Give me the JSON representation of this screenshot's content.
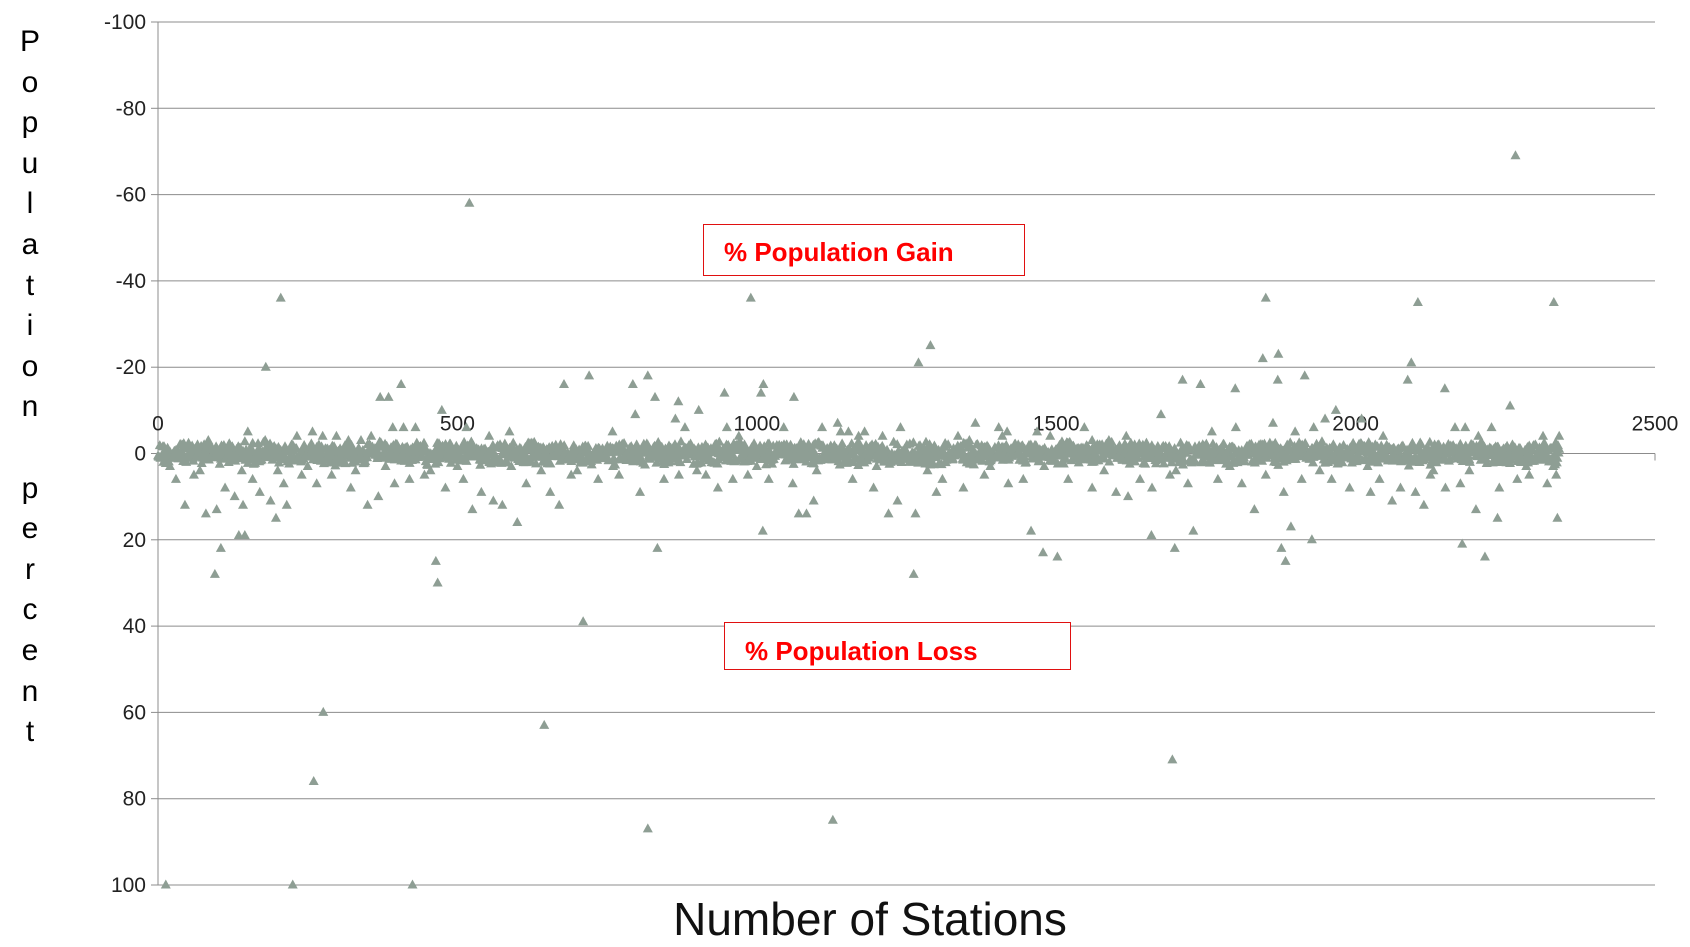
{
  "chart_data": {
    "type": "scatter",
    "title": "",
    "xlabel": "Number of Stations",
    "ylabel": "Population percent",
    "ylabel_chars": [
      "P",
      "o",
      "p",
      "u",
      "l",
      "a",
      "t",
      "i",
      "o",
      "n",
      "",
      "p",
      "e",
      "r",
      "c",
      "e",
      "n",
      "t"
    ],
    "xlim": [
      0,
      2500
    ],
    "ylim": [
      -100,
      100
    ],
    "y_reversed": true,
    "x_ticks": [
      "0",
      "500",
      "1000",
      "1500",
      "2000",
      "2500"
    ],
    "y_ticks": [
      "-100",
      "-80",
      "-60",
      "-40",
      "-20",
      "0",
      "20",
      "40",
      "60",
      "80",
      "100"
    ],
    "grid": "horizontal",
    "marker": "triangle",
    "marker_color": "#8e9e94",
    "annotations": {
      "gain": "% Population Gain",
      "loss": "% Population Loss"
    },
    "baseline_points": {
      "count": 2340,
      "x_range": [
        0,
        2340
      ],
      "y_spread": [
        -3,
        3
      ]
    },
    "series": [
      {
        "name": "",
        "points": [
          [
            13,
            100
          ],
          [
            225,
            100
          ],
          [
            425,
            100
          ],
          [
            818,
            87
          ],
          [
            1127,
            85
          ],
          [
            260,
            76
          ],
          [
            1694,
            71
          ],
          [
            2267,
            -69
          ],
          [
            276,
            60
          ],
          [
            645,
            63
          ],
          [
            520,
            -58
          ],
          [
            710,
            39
          ],
          [
            205,
            -36
          ],
          [
            990,
            -36
          ],
          [
            1850,
            -36
          ],
          [
            2104,
            -35
          ],
          [
            2331,
            -35
          ],
          [
            1290,
            -25
          ],
          [
            1262,
            28
          ],
          [
            467,
            30
          ],
          [
            1270,
            -21
          ],
          [
            1845,
            -22
          ],
          [
            1871,
            -23
          ],
          [
            2093,
            -21
          ],
          [
            95,
            28
          ],
          [
            180,
            -20
          ],
          [
            464,
            25
          ],
          [
            1502,
            24
          ],
          [
            1883,
            25
          ],
          [
            2216,
            24
          ],
          [
            1478,
            23
          ],
          [
            1698,
            22
          ],
          [
            1876,
            22
          ],
          [
            2178,
            21
          ],
          [
            1927,
            20
          ],
          [
            105,
            22
          ],
          [
            834,
            22
          ],
          [
            135,
            19
          ],
          [
            145,
            19
          ],
          [
            1729,
            18
          ],
          [
            1892,
            17
          ],
          [
            1458,
            18
          ],
          [
            1659,
            19
          ],
          [
            2337,
            15
          ],
          [
            197,
            15
          ],
          [
            215,
            12
          ],
          [
            670,
            12
          ],
          [
            1010,
            18
          ],
          [
            1220,
            14
          ],
          [
            1831,
            13
          ],
          [
            2114,
            12
          ],
          [
            2201,
            13
          ],
          [
            1070,
            14
          ],
          [
            1083,
            14
          ],
          [
            2061,
            11
          ],
          [
            2237,
            15
          ],
          [
            1711,
            -17
          ],
          [
            1741,
            -16
          ],
          [
            1870,
            -17
          ],
          [
            1915,
            -18
          ],
          [
            1799,
            -15
          ],
          [
            2087,
            -17
          ],
          [
            2149,
            -15
          ],
          [
            720,
            -18
          ],
          [
            793,
            -16
          ],
          [
            818,
            -18
          ],
          [
            1011,
            -16
          ],
          [
            1062,
            -13
          ],
          [
            1007,
            -14
          ],
          [
            946,
            -14
          ],
          [
            406,
            -16
          ],
          [
            385,
            -13
          ],
          [
            678,
            -16
          ],
          [
            2258,
            -11
          ],
          [
            2166,
            -6
          ],
          [
            2183,
            -6
          ],
          [
            1899,
            -5
          ],
          [
            1760,
            -5
          ],
          [
            1800,
            -6
          ],
          [
            1862,
            -7
          ],
          [
            1468,
            -5
          ],
          [
            1490,
            -4
          ],
          [
            1365,
            -7
          ],
          [
            1336,
            -4
          ],
          [
            1404,
            -6
          ],
          [
            1135,
            -7
          ],
          [
            1153,
            -5
          ],
          [
            1109,
            -6
          ],
          [
            1045,
            -6
          ],
          [
            903,
            -10
          ],
          [
            864,
            -8
          ],
          [
            830,
            -13
          ],
          [
            869,
            -12
          ],
          [
            880,
            -6
          ],
          [
            797,
            -9
          ],
          [
            759,
            -5
          ],
          [
            587,
            -5
          ],
          [
            553,
            -4
          ],
          [
            515,
            -6
          ],
          [
            474,
            -10
          ],
          [
            430,
            -6
          ],
          [
            410,
            -6
          ],
          [
            392,
            -6
          ],
          [
            371,
            -13
          ],
          [
            356,
            -4
          ],
          [
            339,
            -3
          ],
          [
            318,
            -3
          ],
          [
            298,
            -4
          ],
          [
            275,
            -4
          ],
          [
            258,
            -5
          ],
          [
            232,
            -4
          ],
          [
            179,
            -3
          ],
          [
            150,
            -5
          ],
          [
            119,
            -2
          ],
          [
            84,
            -3
          ],
          [
            66,
            -2
          ],
          [
            40,
            -2
          ],
          [
            2227,
            -6
          ],
          [
            2313,
            -4
          ],
          [
            2300,
            -2
          ],
          [
            2340,
            -4
          ],
          [
            2205,
            -4
          ],
          [
            2046,
            -4
          ],
          [
            2010,
            -8
          ],
          [
            1967,
            -10
          ],
          [
            1949,
            -8
          ],
          [
            1930,
            -6
          ],
          [
            1617,
            -4
          ],
          [
            1588,
            -3
          ],
          [
            1547,
            -6
          ],
          [
            1675,
            -9
          ],
          [
            1631,
            -2
          ],
          [
            1560,
            -3
          ],
          [
            1180,
            -5
          ],
          [
            1240,
            -6
          ],
          [
            1210,
            -4
          ],
          [
            1410,
            -4
          ],
          [
            1418,
            -5
          ],
          [
            1355,
            -3
          ],
          [
            950,
            -6
          ],
          [
            1170,
            -4
          ],
          [
            1140,
            -5
          ],
          [
            970,
            -4
          ],
          [
            1050,
            -2
          ],
          [
            30,
            6
          ],
          [
            45,
            12
          ],
          [
            60,
            5
          ],
          [
            80,
            14
          ],
          [
            98,
            13
          ],
          [
            112,
            8
          ],
          [
            128,
            10
          ],
          [
            142,
            12
          ],
          [
            158,
            6
          ],
          [
            170,
            9
          ],
          [
            188,
            11
          ],
          [
            210,
            7
          ],
          [
            240,
            5
          ],
          [
            265,
            7
          ],
          [
            290,
            5
          ],
          [
            322,
            8
          ],
          [
            350,
            12
          ],
          [
            368,
            10
          ],
          [
            395,
            7
          ],
          [
            420,
            6
          ],
          [
            445,
            5
          ],
          [
            480,
            8
          ],
          [
            510,
            6
          ],
          [
            525,
            13
          ],
          [
            540,
            9
          ],
          [
            560,
            11
          ],
          [
            575,
            12
          ],
          [
            600,
            16
          ],
          [
            615,
            7
          ],
          [
            655,
            9
          ],
          [
            690,
            5
          ],
          [
            735,
            6
          ],
          [
            770,
            5
          ],
          [
            805,
            9
          ],
          [
            845,
            6
          ],
          [
            870,
            5
          ],
          [
            915,
            5
          ],
          [
            935,
            8
          ],
          [
            960,
            6
          ],
          [
            985,
            5
          ],
          [
            1020,
            6
          ],
          [
            1060,
            7
          ],
          [
            1095,
            11
          ],
          [
            1160,
            6
          ],
          [
            1195,
            8
          ],
          [
            1235,
            11
          ],
          [
            1265,
            14
          ],
          [
            1300,
            9
          ],
          [
            1310,
            6
          ],
          [
            1345,
            8
          ],
          [
            1380,
            5
          ],
          [
            1420,
            7
          ],
          [
            1445,
            6
          ],
          [
            1520,
            6
          ],
          [
            1560,
            8
          ],
          [
            1600,
            9
          ],
          [
            1620,
            10
          ],
          [
            1640,
            6
          ],
          [
            1660,
            8
          ],
          [
            1690,
            5
          ],
          [
            1720,
            7
          ],
          [
            1770,
            6
          ],
          [
            1810,
            7
          ],
          [
            1850,
            5
          ],
          [
            1880,
            9
          ],
          [
            1910,
            6
          ],
          [
            1960,
            6
          ],
          [
            1990,
            8
          ],
          [
            2025,
            9
          ],
          [
            2040,
            6
          ],
          [
            2075,
            8
          ],
          [
            2100,
            9
          ],
          [
            2125,
            5
          ],
          [
            2150,
            8
          ],
          [
            2175,
            7
          ],
          [
            2240,
            8
          ],
          [
            2270,
            6
          ],
          [
            2290,
            5
          ],
          [
            2320,
            7
          ],
          [
            2330,
            3
          ],
          [
            2335,
            5
          ],
          [
            2285,
            3
          ],
          [
            2190,
            4
          ],
          [
            2130,
            4
          ],
          [
            2020,
            3
          ],
          [
            1940,
            4
          ],
          [
            1790,
            3
          ],
          [
            1700,
            4
          ],
          [
            1580,
            4
          ],
          [
            1480,
            3
          ],
          [
            1390,
            3
          ],
          [
            1285,
            4
          ],
          [
            1200,
            3
          ],
          [
            1100,
            4
          ],
          [
            1000,
            3
          ],
          [
            900,
            4
          ],
          [
            760,
            3
          ],
          [
            700,
            4
          ],
          [
            640,
            4
          ],
          [
            590,
            3
          ],
          [
            500,
            3
          ],
          [
            455,
            4
          ],
          [
            380,
            3
          ],
          [
            330,
            4
          ],
          [
            250,
            3
          ],
          [
            200,
            4
          ],
          [
            140,
            4
          ],
          [
            70,
            4
          ],
          [
            20,
            3
          ]
        ]
      }
    ]
  }
}
